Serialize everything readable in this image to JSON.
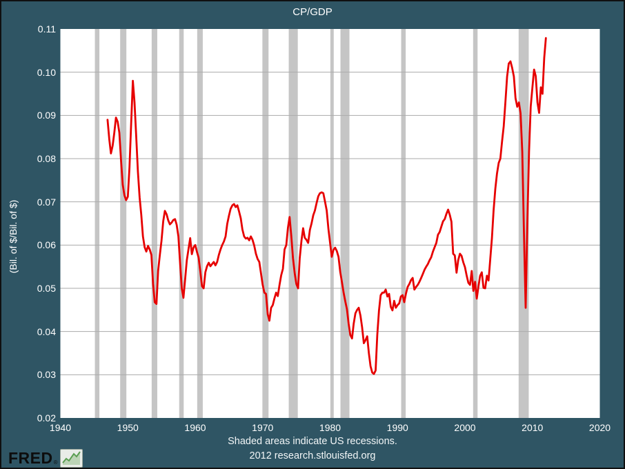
{
  "header": {
    "title": "CP/GDP"
  },
  "y_axis": {
    "label": "(Bil. of $/Bil. of $)",
    "min": 0.02,
    "max": 0.11,
    "tick_step": 0.01,
    "tick_labels": [
      "0.02",
      "0.03",
      "0.04",
      "0.05",
      "0.06",
      "0.07",
      "0.08",
      "0.09",
      "0.10",
      "0.11"
    ]
  },
  "x_axis": {
    "min": 1940,
    "max": 2020,
    "tick_step": 10,
    "tick_labels": [
      "1940",
      "1950",
      "1960",
      "1970",
      "1980",
      "1990",
      "2000",
      "2010",
      "2020"
    ]
  },
  "footer": {
    "note": "Shaded areas indicate US recessions.",
    "source": "2012 research.stlouisfed.org"
  },
  "logo": {
    "text": "FRED",
    "registered": "®",
    "icon": "line-chart-icon"
  },
  "colors": {
    "background": "#2F5564",
    "plot_background": "#FFFFFF",
    "line": "#E60000",
    "recession_band": "#C5C5C5",
    "gridline": "#AAAAAA",
    "text": "#FFFFFF",
    "outer_border": "#101010",
    "logo_green": "#5A9E52"
  },
  "chart_data": {
    "type": "line",
    "title": "CP/GDP",
    "xlabel": "",
    "ylabel": "(Bil. of $/Bil. of $)",
    "xlim": [
      1940,
      2020
    ],
    "ylim": [
      0.02,
      0.11
    ],
    "grid": true,
    "legend": "none",
    "series_name": "CP/GDP ratio, quarterly",
    "start_year": 1947.0,
    "period_years": 0.25,
    "values": [
      0.089,
      0.0845,
      0.0812,
      0.083,
      0.086,
      0.0895,
      0.0885,
      0.086,
      0.0795,
      0.074,
      0.0715,
      0.0704,
      0.0712,
      0.078,
      0.088,
      0.098,
      0.093,
      0.085,
      0.077,
      0.071,
      0.067,
      0.062,
      0.0595,
      0.0585,
      0.0598,
      0.059,
      0.0577,
      0.051,
      0.0468,
      0.0464,
      0.054,
      0.0577,
      0.061,
      0.0655,
      0.0679,
      0.0671,
      0.0657,
      0.0648,
      0.0652,
      0.0658,
      0.066,
      0.0647,
      0.062,
      0.056,
      0.05,
      0.0478,
      0.052,
      0.0565,
      0.059,
      0.0616,
      0.0579,
      0.0595,
      0.06,
      0.0585,
      0.0571,
      0.054,
      0.0505,
      0.05,
      0.0537,
      0.0551,
      0.0559,
      0.0551,
      0.0556,
      0.0561,
      0.0553,
      0.0561,
      0.0577,
      0.059,
      0.06,
      0.0608,
      0.062,
      0.0649,
      0.0668,
      0.0684,
      0.0692,
      0.0695,
      0.0688,
      0.0692,
      0.0678,
      0.0662,
      0.0636,
      0.062,
      0.0615,
      0.0617,
      0.0611,
      0.062,
      0.0612,
      0.0599,
      0.058,
      0.0568,
      0.0561,
      0.0535,
      0.0508,
      0.049,
      0.0487,
      0.044,
      0.0425,
      0.0455,
      0.0461,
      0.0477,
      0.049,
      0.0482,
      0.0508,
      0.053,
      0.0545,
      0.059,
      0.06,
      0.064,
      0.0665,
      0.062,
      0.057,
      0.0535,
      0.051,
      0.05,
      0.057,
      0.061,
      0.0639,
      0.0617,
      0.0612,
      0.0605,
      0.0635,
      0.065,
      0.0669,
      0.068,
      0.0697,
      0.0713,
      0.072,
      0.0722,
      0.072,
      0.07,
      0.068,
      0.0637,
      0.0605,
      0.0573,
      0.0589,
      0.0594,
      0.0586,
      0.0573,
      0.0538,
      0.0515,
      0.049,
      0.047,
      0.0452,
      0.0418,
      0.0392,
      0.0384,
      0.0418,
      0.0442,
      0.045,
      0.0455,
      0.0437,
      0.041,
      0.0373,
      0.038,
      0.0389,
      0.035,
      0.032,
      0.0305,
      0.0302,
      0.031,
      0.0392,
      0.0449,
      0.0484,
      0.049,
      0.049,
      0.0497,
      0.0481,
      0.0487,
      0.0457,
      0.0449,
      0.0471,
      0.0455,
      0.0461,
      0.0465,
      0.0481,
      0.0484,
      0.0468,
      0.0488,
      0.0503,
      0.051,
      0.0519,
      0.0524,
      0.0497,
      0.0503,
      0.0508,
      0.0515,
      0.0524,
      0.0533,
      0.0543,
      0.055,
      0.0556,
      0.0565,
      0.0572,
      0.0585,
      0.0595,
      0.0605,
      0.0624,
      0.063,
      0.0643,
      0.0655,
      0.066,
      0.0672,
      0.0682,
      0.067,
      0.0654,
      0.058,
      0.0576,
      0.0536,
      0.0565,
      0.058,
      0.0575,
      0.056,
      0.0549,
      0.053,
      0.0513,
      0.0508,
      0.054,
      0.0494,
      0.0515,
      0.0476,
      0.0505,
      0.0529,
      0.0537,
      0.0501,
      0.05,
      0.0529,
      0.0518,
      0.0568,
      0.0616,
      0.068,
      0.073,
      0.0765,
      0.079,
      0.08,
      0.084,
      0.0875,
      0.093,
      0.099,
      0.102,
      0.1025,
      0.101,
      0.099,
      0.094,
      0.092,
      0.093,
      0.0905,
      0.0815,
      0.063,
      0.0455,
      0.065,
      0.0816,
      0.092,
      0.0965,
      0.1006,
      0.0991,
      0.093,
      0.0906,
      0.0965,
      0.095,
      0.1033,
      0.1079
    ],
    "recessions": [
      [
        1945.12,
        1945.79
      ],
      [
        1948.87,
        1949.79
      ],
      [
        1953.54,
        1954.37
      ],
      [
        1957.62,
        1958.29
      ],
      [
        1960.29,
        1961.12
      ],
      [
        1969.96,
        1970.87
      ],
      [
        1973.87,
        1975.21
      ],
      [
        1980.04,
        1980.54
      ],
      [
        1981.54,
        1982.87
      ],
      [
        1990.54,
        1991.21
      ],
      [
        2001.21,
        2001.87
      ],
      [
        2007.96,
        2009.46
      ]
    ]
  }
}
